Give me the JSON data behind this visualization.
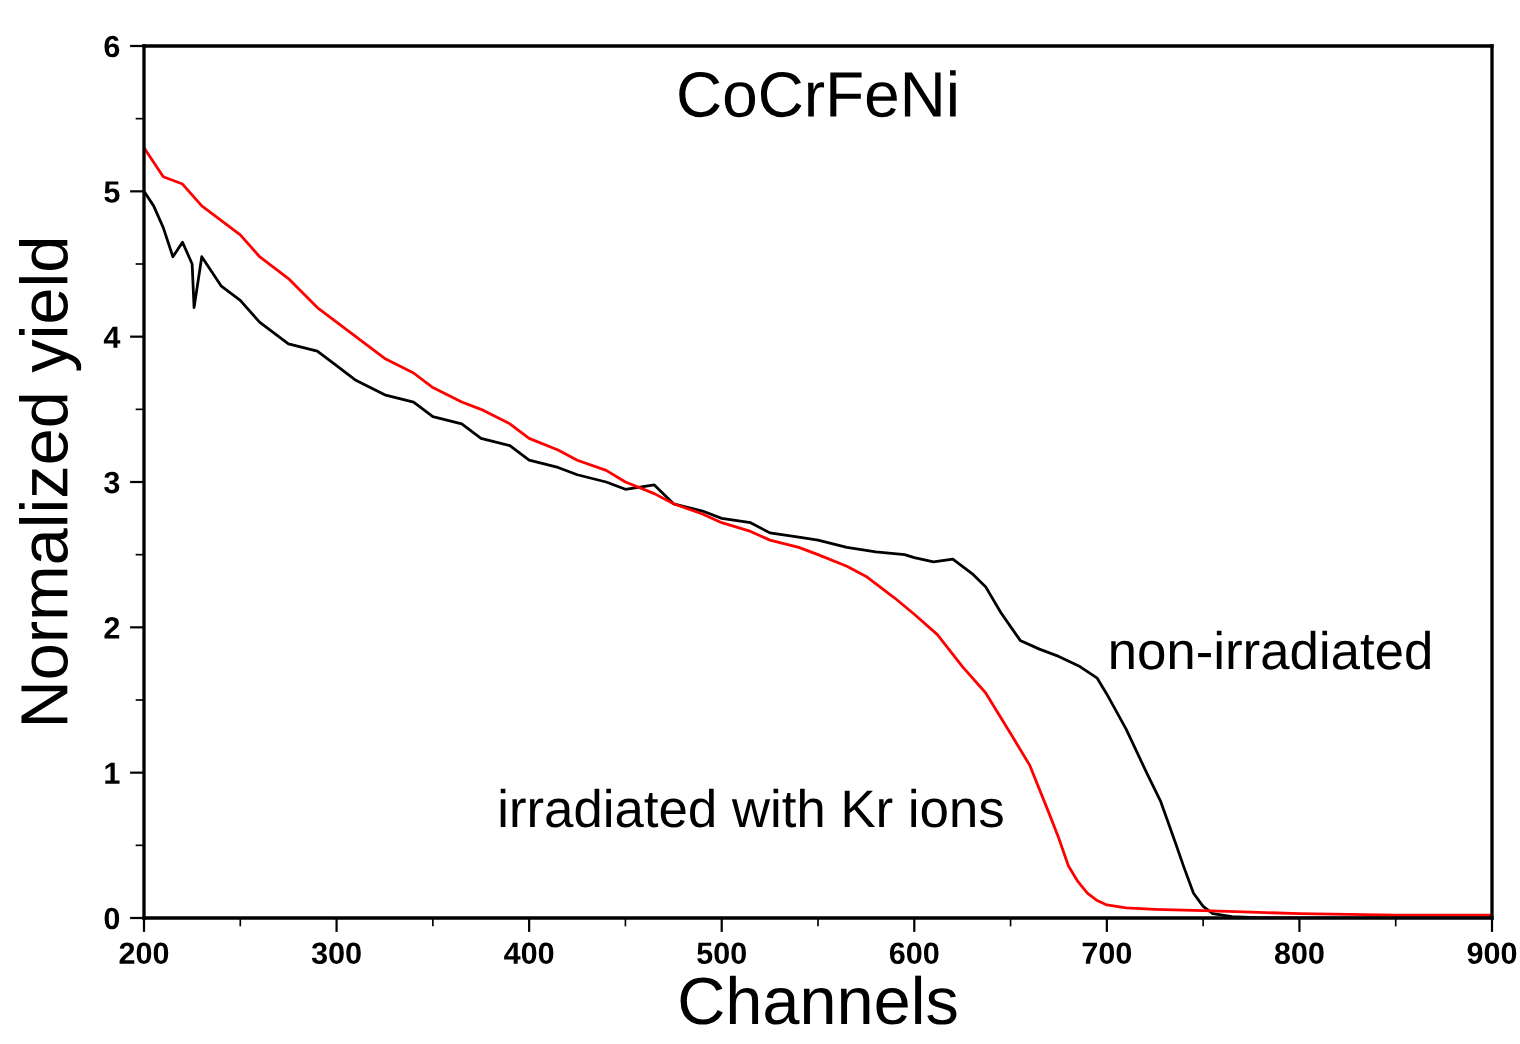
{
  "chart_data": {
    "type": "line",
    "title": "CoCrFeNi",
    "xlabel": "Channels",
    "ylabel": "Normalized yield",
    "xlim": [
      200,
      900
    ],
    "ylim": [
      0,
      6
    ],
    "xticks": [
      200,
      300,
      400,
      500,
      600,
      700,
      800,
      900
    ],
    "yticks": [
      0,
      1,
      2,
      3,
      4,
      5,
      6
    ],
    "grid": false,
    "legend": false,
    "marker": "none",
    "line_style": "solid",
    "series": [
      {
        "name": "non-irradiated",
        "color": "#000000",
        "x": [
          200,
          205,
          210,
          215,
          220,
          225,
          226,
          230,
          240,
          250,
          260,
          275,
          290,
          300,
          310,
          325,
          340,
          350,
          365,
          375,
          390,
          400,
          415,
          425,
          440,
          450,
          465,
          475,
          490,
          500,
          515,
          525,
          540,
          550,
          565,
          580,
          595,
          600,
          610,
          620,
          630,
          637,
          645,
          655,
          665,
          675,
          686,
          695,
          700,
          710,
          721,
          728,
          735,
          740,
          745,
          750,
          755,
          765,
          780,
          800,
          850,
          900
        ],
        "values": [
          5.0,
          4.9,
          4.75,
          4.55,
          4.65,
          4.5,
          4.2,
          4.55,
          4.35,
          4.25,
          4.1,
          3.95,
          3.9,
          3.8,
          3.7,
          3.6,
          3.55,
          3.45,
          3.4,
          3.3,
          3.25,
          3.15,
          3.1,
          3.05,
          3.0,
          2.95,
          2.98,
          2.85,
          2.8,
          2.75,
          2.72,
          2.65,
          2.62,
          2.6,
          2.55,
          2.52,
          2.5,
          2.48,
          2.45,
          2.47,
          2.37,
          2.28,
          2.1,
          1.91,
          1.85,
          1.8,
          1.73,
          1.65,
          1.54,
          1.3,
          0.99,
          0.8,
          0.54,
          0.35,
          0.17,
          0.08,
          0.03,
          0.01,
          0.0,
          0.0,
          0.0,
          0.0
        ]
      },
      {
        "name": "irradiated with Kr ions",
        "color": "#ff0000",
        "x": [
          200,
          205,
          210,
          220,
          230,
          240,
          250,
          260,
          275,
          290,
          300,
          310,
          325,
          340,
          350,
          365,
          375,
          390,
          400,
          415,
          425,
          440,
          450,
          465,
          475,
          490,
          500,
          515,
          525,
          540,
          550,
          565,
          575,
          590,
          600,
          612,
          625,
          637,
          650,
          660,
          670,
          675,
          680,
          685,
          690,
          695,
          700,
          710,
          725,
          750,
          775,
          800,
          850,
          900
        ],
        "values": [
          5.3,
          5.2,
          5.1,
          5.05,
          4.9,
          4.8,
          4.7,
          4.55,
          4.4,
          4.2,
          4.1,
          4.0,
          3.85,
          3.75,
          3.65,
          3.55,
          3.5,
          3.4,
          3.3,
          3.22,
          3.15,
          3.08,
          3.0,
          2.92,
          2.85,
          2.78,
          2.72,
          2.66,
          2.6,
          2.55,
          2.5,
          2.42,
          2.35,
          2.2,
          2.09,
          1.95,
          1.73,
          1.55,
          1.27,
          1.05,
          0.72,
          0.55,
          0.36,
          0.25,
          0.17,
          0.12,
          0.09,
          0.07,
          0.06,
          0.05,
          0.04,
          0.03,
          0.02,
          0.02
        ]
      }
    ]
  }
}
